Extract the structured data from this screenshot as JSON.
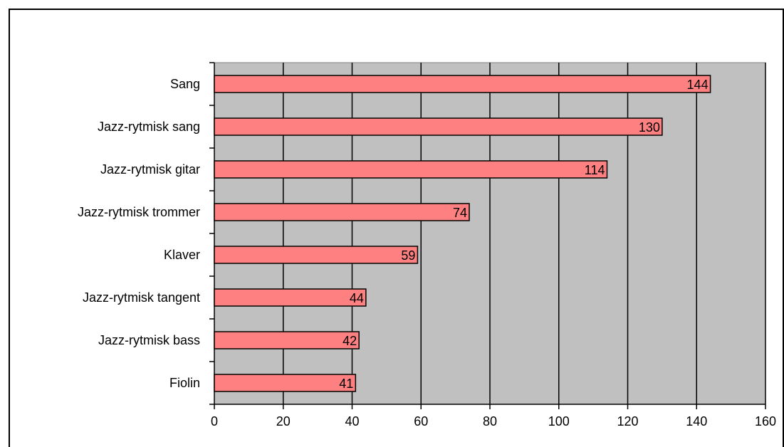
{
  "chart_data": {
    "type": "bar",
    "orientation": "horizontal",
    "categories": [
      "Sang",
      "Jazz-rytmisk sang",
      "Jazz-rytmisk gitar",
      "Jazz-rytmisk trommer",
      "Klaver",
      "Jazz-rytmisk tangent",
      "Jazz-rytmisk bass",
      "Fiolin"
    ],
    "values": [
      144,
      130,
      114,
      74,
      59,
      44,
      42,
      41
    ],
    "xlim": [
      0,
      160
    ],
    "x_ticks": [
      0,
      20,
      40,
      60,
      80,
      100,
      120,
      140,
      160
    ],
    "grid": "vertical",
    "data_labels": true,
    "colors": {
      "bar_fill": "#FF8080",
      "bar_stroke": "#000000",
      "plot_background": "#C0C0C0",
      "gridline": "#000000"
    }
  }
}
